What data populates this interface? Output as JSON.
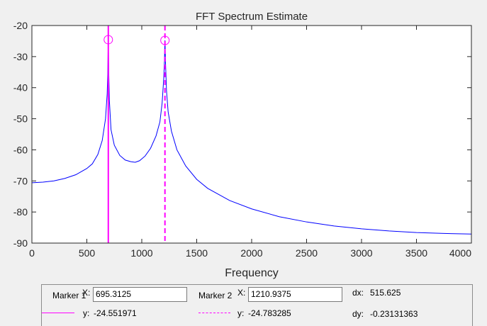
{
  "chart_data": {
    "type": "line",
    "title": "FFT Spectrum Estimate",
    "xlabel": "Frequency",
    "ylabel": "",
    "xlim": [
      0,
      4000
    ],
    "ylim": [
      -90,
      -20
    ],
    "xticks": [
      0,
      500,
      1000,
      1500,
      2000,
      2500,
      3000,
      3500,
      4000
    ],
    "yticks": [
      -20,
      -30,
      -40,
      -50,
      -60,
      -70,
      -80,
      -90
    ],
    "grid": false,
    "series": [
      {
        "color": "#0000ff",
        "x": [
          0,
          100,
          200,
          300,
          400,
          500,
          550,
          600,
          640,
          670,
          685,
          690,
          695.3125,
          700,
          705,
          720,
          750,
          800,
          850,
          900,
          940,
          980,
          1030,
          1080,
          1130,
          1165,
          1185,
          1200,
          1206,
          1210.9375,
          1216,
          1225,
          1240,
          1270,
          1320,
          1400,
          1500,
          1600,
          1800,
          2000,
          2250,
          2500,
          2750,
          3000,
          3250,
          3500,
          3750,
          4000
        ],
        "y": [
          -70.6,
          -70.4,
          -70,
          -69.2,
          -68,
          -66,
          -64.5,
          -61.5,
          -57,
          -50,
          -42,
          -36,
          -24.55,
          -36,
          -44,
          -53.5,
          -58.5,
          -61.8,
          -63.3,
          -63.8,
          -64,
          -63.5,
          -62,
          -59.5,
          -55.5,
          -51,
          -45,
          -37,
          -32,
          -24.78,
          -32,
          -41,
          -47.8,
          -54,
          -60,
          -65.2,
          -69.5,
          -72.4,
          -76.3,
          -79,
          -81.5,
          -83.2,
          -84.5,
          -85.4,
          -86.1,
          -86.6,
          -86.9,
          -87.1
        ]
      }
    ],
    "markers": [
      {
        "x": 695.3125,
        "y": -24.551971,
        "color": "#ff00ff",
        "style": "solid"
      },
      {
        "x": 1210.9375,
        "y": -24.783285,
        "color": "#ff00ff",
        "style": "dashed"
      }
    ]
  },
  "marker_panel": {
    "marker1_label": "Marker 1",
    "marker1_x_label": "X:",
    "marker1_x_value": "695.3125",
    "marker1_y_label": "y:",
    "marker1_y_value": "-24.551971",
    "marker2_label": "Marker 2",
    "marker2_x_label": "X:",
    "marker2_x_value": "1210.9375",
    "marker2_y_label": "y:",
    "marker2_y_value": "-24.783285",
    "dx_label": "dx:",
    "dx_value": "515.625",
    "dy_label": "dy:",
    "dy_value": "-0.23131363",
    "line_color": "#ff00ff"
  }
}
